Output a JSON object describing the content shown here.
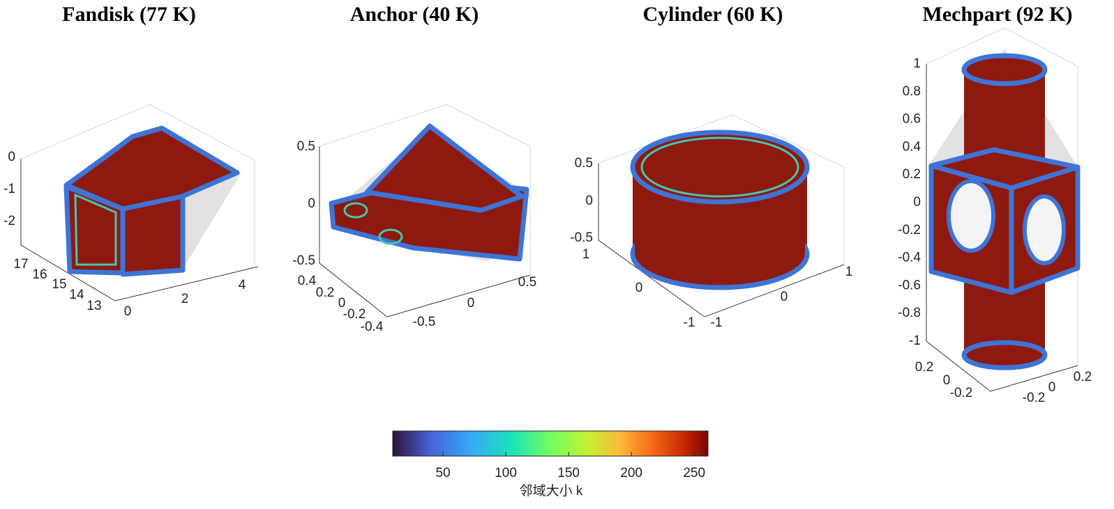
{
  "panels": [
    {
      "title": "Fandisk (77 K)",
      "x_ticks": [
        0,
        2,
        4
      ],
      "y_ticks": [
        17,
        16,
        15,
        14,
        13
      ],
      "z_ticks": [
        0,
        -1,
        -2
      ]
    },
    {
      "title": "Anchor (40 K)",
      "x_ticks": [
        -0.5,
        0,
        0.5
      ],
      "y_ticks": [
        0.4,
        0.2,
        0,
        -0.2,
        -0.4
      ],
      "z_ticks": [
        0.5,
        0,
        -0.5
      ]
    },
    {
      "title": "Cylinder (60 K)",
      "x_ticks": [
        -1,
        0,
        1
      ],
      "y_ticks": [
        1,
        0,
        -1
      ],
      "z_ticks": [
        0.5,
        0,
        -0.5
      ]
    },
    {
      "title": "Mechpart (92 K)",
      "x_ticks": [
        -0.2,
        0,
        0.2
      ],
      "y_ticks": [
        0.2,
        0,
        -0.2
      ],
      "z_ticks": [
        1,
        0.8,
        0.6,
        0.4,
        0.2,
        0,
        -0.2,
        -0.4,
        -0.6,
        -0.8,
        -1
      ]
    }
  ],
  "colorbar": {
    "label": "邻域大小 k",
    "range": [
      10,
      261
    ],
    "ticks": [
      50,
      100,
      150,
      200,
      250
    ]
  }
}
